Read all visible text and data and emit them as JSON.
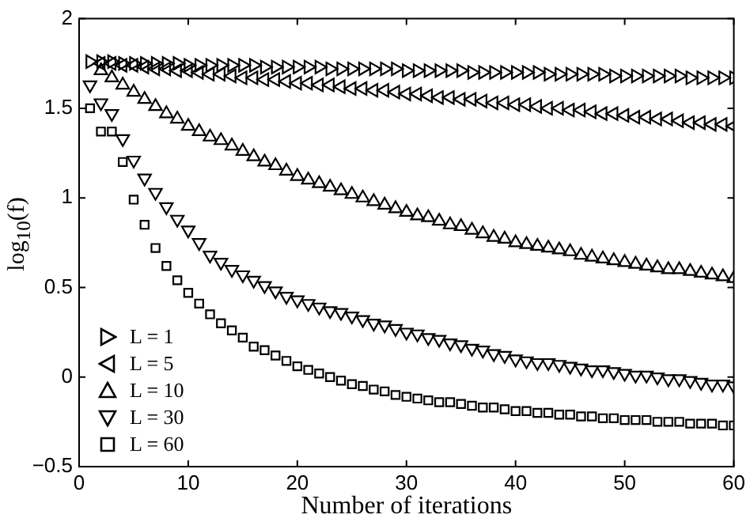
{
  "chart_data": {
    "type": "scatter",
    "xlabel": "Number of iterations",
    "ylabel": "log$_{10}$(f)",
    "x": [
      1,
      2,
      3,
      4,
      5,
      6,
      7,
      8,
      9,
      10,
      11,
      12,
      13,
      14,
      15,
      16,
      17,
      18,
      19,
      20,
      21,
      22,
      23,
      24,
      25,
      26,
      27,
      28,
      29,
      30,
      31,
      32,
      33,
      34,
      35,
      36,
      37,
      38,
      39,
      40,
      41,
      42,
      43,
      44,
      45,
      46,
      47,
      48,
      49,
      50,
      51,
      52,
      53,
      54,
      55,
      56,
      57,
      58,
      59,
      60
    ],
    "xlim": [
      0,
      60
    ],
    "xticks": [
      0,
      10,
      20,
      30,
      40,
      50,
      60
    ],
    "ylim": [
      -0.5,
      2
    ],
    "yticks": [
      -0.5,
      0,
      0.5,
      1,
      1.5,
      2
    ],
    "grid": false,
    "legend": "bottom left",
    "series": [
      {
        "name": "L = 1",
        "color": "#000000",
        "marker": "triangle-right",
        "values": [
          1.76,
          1.76,
          1.76,
          1.75,
          1.75,
          1.75,
          1.75,
          1.75,
          1.75,
          1.74,
          1.74,
          1.74,
          1.74,
          1.74,
          1.74,
          1.74,
          1.73,
          1.73,
          1.73,
          1.73,
          1.73,
          1.73,
          1.72,
          1.72,
          1.72,
          1.72,
          1.72,
          1.72,
          1.72,
          1.71,
          1.71,
          1.71,
          1.71,
          1.71,
          1.71,
          1.7,
          1.7,
          1.7,
          1.7,
          1.7,
          1.7,
          1.7,
          1.69,
          1.69,
          1.69,
          1.69,
          1.69,
          1.69,
          1.68,
          1.68,
          1.68,
          1.68,
          1.68,
          1.68,
          1.68,
          1.67,
          1.67,
          1.67,
          1.67,
          1.67
        ]
      },
      {
        "name": "L = 5",
        "color": "#000000",
        "marker": "triangle-left",
        "values": [
          null,
          1.75,
          1.75,
          1.74,
          1.74,
          1.73,
          1.72,
          1.72,
          1.71,
          1.71,
          1.7,
          1.69,
          1.69,
          1.68,
          1.67,
          1.67,
          1.66,
          1.66,
          1.65,
          1.64,
          1.64,
          1.63,
          1.63,
          1.62,
          1.61,
          1.61,
          1.6,
          1.6,
          1.59,
          1.58,
          1.58,
          1.57,
          1.56,
          1.56,
          1.55,
          1.55,
          1.54,
          1.53,
          1.53,
          1.52,
          1.52,
          1.51,
          1.5,
          1.5,
          1.49,
          1.49,
          1.48,
          1.47,
          1.47,
          1.46,
          1.45,
          1.45,
          1.44,
          1.44,
          1.43,
          1.42,
          1.42,
          1.41,
          1.41,
          1.4
        ]
      },
      {
        "name": "L = 10",
        "color": "#000000",
        "marker": "triangle",
        "values": [
          null,
          1.71,
          1.67,
          1.63,
          1.59,
          1.55,
          1.51,
          1.47,
          1.44,
          1.4,
          1.37,
          1.34,
          1.32,
          1.29,
          1.26,
          1.23,
          1.2,
          1.18,
          1.15,
          1.12,
          1.1,
          1.08,
          1.06,
          1.04,
          1.02,
          1.0,
          0.98,
          0.96,
          0.94,
          0.92,
          0.9,
          0.89,
          0.87,
          0.85,
          0.84,
          0.82,
          0.8,
          0.78,
          0.77,
          0.75,
          0.74,
          0.73,
          0.72,
          0.71,
          0.7,
          0.68,
          0.67,
          0.66,
          0.65,
          0.64,
          0.63,
          0.62,
          0.61,
          0.6,
          0.6,
          0.59,
          0.58,
          0.57,
          0.56,
          0.55
        ]
      },
      {
        "name": "L = 30",
        "color": "#000000",
        "marker": "triangle-down",
        "values": [
          1.63,
          1.53,
          1.47,
          1.33,
          1.21,
          1.11,
          1.03,
          0.95,
          0.88,
          0.82,
          0.75,
          0.68,
          0.64,
          0.6,
          0.57,
          0.54,
          0.51,
          0.48,
          0.45,
          0.43,
          0.41,
          0.39,
          0.37,
          0.36,
          0.34,
          0.32,
          0.3,
          0.29,
          0.27,
          0.25,
          0.24,
          0.22,
          0.21,
          0.19,
          0.18,
          0.16,
          0.15,
          0.13,
          0.12,
          0.1,
          0.09,
          0.08,
          0.08,
          0.07,
          0.06,
          0.05,
          0.04,
          0.04,
          0.03,
          0.02,
          0.01,
          0.01,
          0.0,
          -0.01,
          -0.01,
          -0.02,
          -0.03,
          -0.04,
          -0.04,
          -0.05
        ]
      },
      {
        "name": "L = 60",
        "color": "#000000",
        "marker": "square",
        "values": [
          1.5,
          1.37,
          1.37,
          1.2,
          0.99,
          0.85,
          0.72,
          0.62,
          0.54,
          0.47,
          0.41,
          0.35,
          0.3,
          0.26,
          0.22,
          0.17,
          0.15,
          0.12,
          0.09,
          0.06,
          0.04,
          0.02,
          0.0,
          -0.02,
          -0.04,
          -0.05,
          -0.07,
          -0.08,
          -0.1,
          -0.11,
          -0.12,
          -0.13,
          -0.14,
          -0.14,
          -0.15,
          -0.16,
          -0.17,
          -0.17,
          -0.18,
          -0.19,
          -0.19,
          -0.2,
          -0.2,
          -0.21,
          -0.21,
          -0.22,
          -0.22,
          -0.23,
          -0.23,
          -0.24,
          -0.24,
          -0.24,
          -0.25,
          -0.25,
          -0.25,
          -0.26,
          -0.26,
          -0.26,
          -0.27,
          -0.27
        ]
      }
    ]
  }
}
